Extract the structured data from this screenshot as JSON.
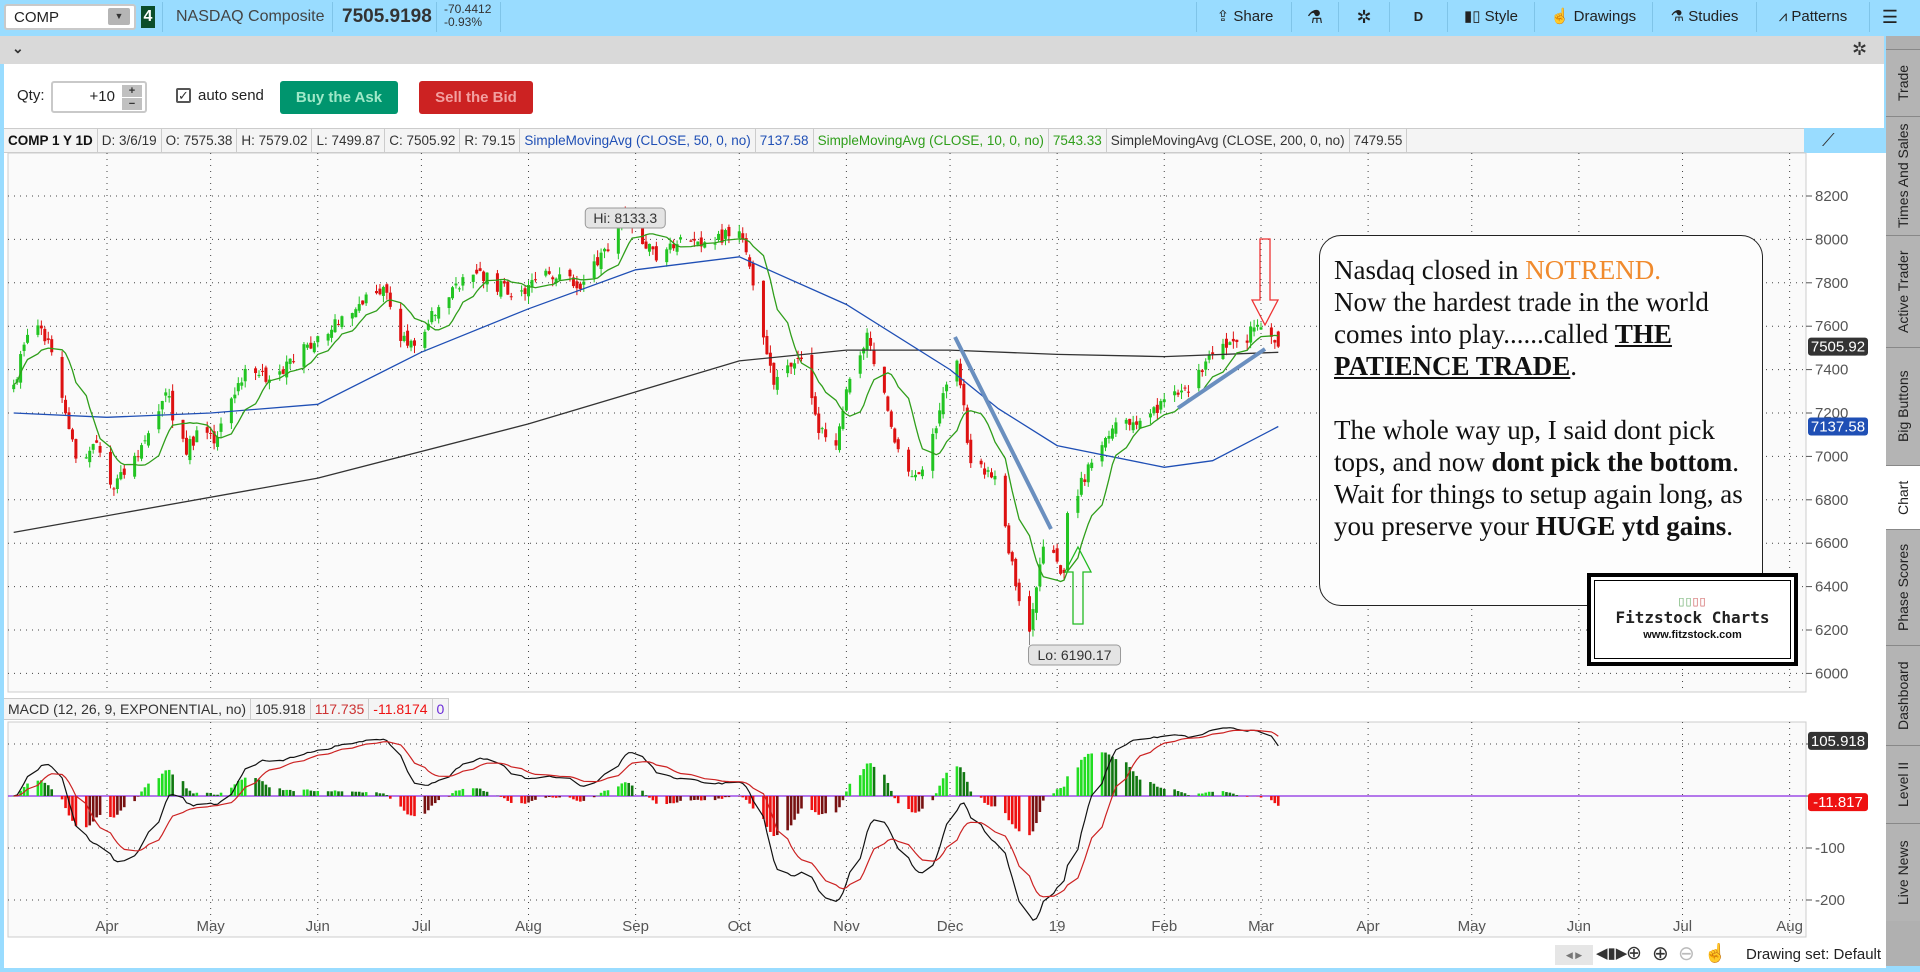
{
  "toolbar": {
    "symbol": "COMP",
    "link_badge": "4",
    "description": "NASDAQ Composite",
    "last_price": "7505.9198",
    "net_change": "-70.4412",
    "pct_change": "-0.93%",
    "buttons": {
      "share": "Share",
      "period": "D",
      "style": "Style",
      "drawings": "Drawings",
      "studies": "Studies",
      "patterns": "Patterns"
    },
    "icons": [
      "share-icon",
      "flask-icon",
      "gear-icon",
      "candles-icon",
      "hand-icon",
      "studies-flask-icon",
      "patterns-icon",
      "menu-icon"
    ]
  },
  "order": {
    "qty_label": "Qty:",
    "qty_value": "+10",
    "auto_send_label": "auto send",
    "auto_send_checked": true,
    "buy_label": "Buy the Ask",
    "sell_label": "Sell the Bid",
    "buy_color": "#00956e",
    "sell_color": "#cc2222"
  },
  "info": {
    "title": "COMP 1 Y 1D",
    "date": "D: 3/6/19",
    "open": "O: 7575.38",
    "high": "H: 7579.02",
    "low": "L: 7499.87",
    "close": "C: 7505.92",
    "range": "R: 79.15",
    "sma50_label": "SimpleMovingAvg (CLOSE, 50, 0, no)",
    "sma50_value": "7137.58",
    "sma10_label": "SimpleMovingAvg (CLOSE, 10, 0, no)",
    "sma10_value": "7543.33",
    "sma200_label": "SimpleMovingAvg (CLOSE, 200, 0, no)",
    "sma200_value": "7479.55"
  },
  "macd_header": {
    "label": "MACD (12, 26, 9, EXPONENTIAL, no)",
    "value": "105.918",
    "avg": "117.735",
    "diff": "-11.8174",
    "zero": "0"
  },
  "side_tabs": [
    "Trade",
    "Times And Sales",
    "Active Trader",
    "Big Buttons",
    "Chart",
    "Phase Scores",
    "Dashboard",
    "Level II",
    "Live News"
  ],
  "active_side_tab": "Chart",
  "bottom": {
    "drawing_set": "Drawing set: Default"
  },
  "note": {
    "l1a": "Nasdaq closed in ",
    "l1b": "NOTREND.",
    "l2": "Now the hardest trade in the world comes into play......called ",
    "l2b": "THE PATIENCE TRADE",
    "l2c": ".",
    "p2a": "The whole way up, I said dont pick tops, and now ",
    "p2b": "dont pick the bottom",
    "p2c": ".   Wait for things to setup again long, as you preserve your ",
    "p2d": "HUGE ytd gains",
    "p2e": ".",
    "notrend_color": "#f08a2c"
  },
  "logo": {
    "name": "Fitzstock Charts",
    "url": "www.fitzstock.com"
  },
  "chart_data": {
    "type": "candlestick",
    "price_axis": {
      "ticks": [
        6000,
        6200,
        6400,
        6600,
        6800,
        7000,
        7200,
        7400,
        7600,
        7800,
        8000,
        8200
      ],
      "range": [
        5960,
        8320
      ]
    },
    "macd_axis": {
      "ticks": [
        -200,
        -100,
        0,
        100
      ],
      "range": [
        -260,
        140
      ]
    },
    "x_ticks": [
      {
        "label": "Apr",
        "date": "2018-04-01"
      },
      {
        "label": "May",
        "date": "2018-05-01"
      },
      {
        "label": "Jun",
        "date": "2018-06-01"
      },
      {
        "label": "Jul",
        "date": "2018-07-01"
      },
      {
        "label": "Aug",
        "date": "2018-08-01"
      },
      {
        "label": "Sep",
        "date": "2018-09-01"
      },
      {
        "label": "Oct",
        "date": "2018-10-01"
      },
      {
        "label": "Nov",
        "date": "2018-11-01"
      },
      {
        "label": "Dec",
        "date": "2018-12-01"
      },
      {
        "label": "19",
        "date": "2019-01-01"
      },
      {
        "label": "Feb",
        "date": "2019-02-01"
      },
      {
        "label": "Mar",
        "date": "2019-03-01"
      },
      {
        "label": "Apr",
        "date": "2019-04-01"
      },
      {
        "label": "May",
        "date": "2019-05-01"
      },
      {
        "label": "Jun",
        "date": "2019-06-01"
      },
      {
        "label": "Jul",
        "date": "2019-07-01"
      },
      {
        "label": "Aug",
        "date": "2019-08-01"
      }
    ],
    "closes": [
      [
        "2018-03-05",
        7330
      ],
      [
        "2018-03-09",
        7560
      ],
      [
        "2018-03-13",
        7590
      ],
      [
        "2018-03-16",
        7480
      ],
      [
        "2018-03-23",
        6990
      ],
      [
        "2018-03-29",
        7063
      ],
      [
        "2018-04-02",
        6870
      ],
      [
        "2018-04-06",
        6915
      ],
      [
        "2018-04-13",
        7107
      ],
      [
        "2018-04-18",
        7295
      ],
      [
        "2018-04-24",
        7008
      ],
      [
        "2018-04-27",
        7120
      ],
      [
        "2018-05-03",
        7090
      ],
      [
        "2018-05-11",
        7403
      ],
      [
        "2018-05-18",
        7354
      ],
      [
        "2018-05-25",
        7434
      ],
      [
        "2018-06-01",
        7554
      ],
      [
        "2018-06-08",
        7646
      ],
      [
        "2018-06-15",
        7746
      ],
      [
        "2018-06-20",
        7781
      ],
      [
        "2018-06-25",
        7532
      ],
      [
        "2018-06-29",
        7510
      ],
      [
        "2018-07-06",
        7688
      ],
      [
        "2018-07-13",
        7826
      ],
      [
        "2018-07-18",
        7855
      ],
      [
        "2018-07-27",
        7737
      ],
      [
        "2018-08-03",
        7812
      ],
      [
        "2018-08-10",
        7839
      ],
      [
        "2018-08-15",
        7775
      ],
      [
        "2018-08-24",
        7946
      ],
      [
        "2018-08-29",
        8110
      ],
      [
        "2018-09-07",
        7903
      ],
      [
        "2018-09-14",
        8010
      ],
      [
        "2018-09-21",
        7987
      ],
      [
        "2018-10-01",
        8037
      ],
      [
        "2018-10-05",
        7788
      ],
      [
        "2018-10-11",
        7330
      ],
      [
        "2018-10-19",
        7449
      ],
      [
        "2018-10-24",
        7108
      ],
      [
        "2018-10-29",
        7050
      ],
      [
        "2018-11-02",
        7357
      ],
      [
        "2018-11-07",
        7570
      ],
      [
        "2018-11-14",
        7136
      ],
      [
        "2018-11-20",
        6909
      ],
      [
        "2018-11-23",
        6939
      ],
      [
        "2018-11-30",
        7331
      ],
      [
        "2018-12-03",
        7441
      ],
      [
        "2018-12-07",
        6969
      ],
      [
        "2018-12-14",
        6910
      ],
      [
        "2018-12-21",
        6333
      ],
      [
        "2018-12-24",
        6193
      ],
      [
        "2018-12-28",
        6584
      ],
      [
        "2019-01-03",
        6463
      ],
      [
        "2019-01-04",
        6739
      ],
      [
        "2019-01-11",
        6971
      ],
      [
        "2019-01-18",
        7157
      ],
      [
        "2019-01-25",
        7164
      ],
      [
        "2019-02-01",
        7263
      ],
      [
        "2019-02-08",
        7298
      ],
      [
        "2019-02-15",
        7472
      ],
      [
        "2019-02-22",
        7527
      ],
      [
        "2019-03-01",
        7595
      ],
      [
        "2019-03-06",
        7505.92
      ]
    ],
    "sma50": [
      [
        "2018-03-05",
        7200
      ],
      [
        "2018-04-01",
        7180
      ],
      [
        "2018-05-01",
        7200
      ],
      [
        "2018-06-01",
        7240
      ],
      [
        "2018-07-01",
        7480
      ],
      [
        "2018-08-01",
        7680
      ],
      [
        "2018-09-01",
        7860
      ],
      [
        "2018-10-01",
        7920
      ],
      [
        "2018-11-01",
        7700
      ],
      [
        "2018-12-01",
        7400
      ],
      [
        "2018-12-15",
        7220
      ],
      [
        "2019-01-01",
        7050
      ],
      [
        "2019-02-01",
        6950
      ],
      [
        "2019-02-15",
        6980
      ],
      [
        "2019-03-06",
        7137.58
      ]
    ],
    "sma200": [
      [
        "2018-03-05",
        6650
      ],
      [
        "2018-06-01",
        6900
      ],
      [
        "2018-08-01",
        7150
      ],
      [
        "2018-10-01",
        7440
      ],
      [
        "2018-11-01",
        7490
      ],
      [
        "2018-12-01",
        7490
      ],
      [
        "2019-01-01",
        7470
      ],
      [
        "2019-02-01",
        7460
      ],
      [
        "2019-03-06",
        7479.55
      ]
    ],
    "series_colors": {
      "sma50": "#1f4fb5",
      "sma10": "#2f9e1a",
      "sma200": "#333333",
      "up": "#22c422",
      "down": "#dd1111",
      "macd": "#111111",
      "signal": "#cc2222",
      "zero": "#8a2be2"
    },
    "annotations": {
      "hi": "Hi: 8133.3",
      "lo": "Lo: 6190.17"
    },
    "price_tags": {
      "close": "7505.92",
      "sma50": "7137.58",
      "macd": "105.918",
      "diff": "-11.817"
    }
  }
}
